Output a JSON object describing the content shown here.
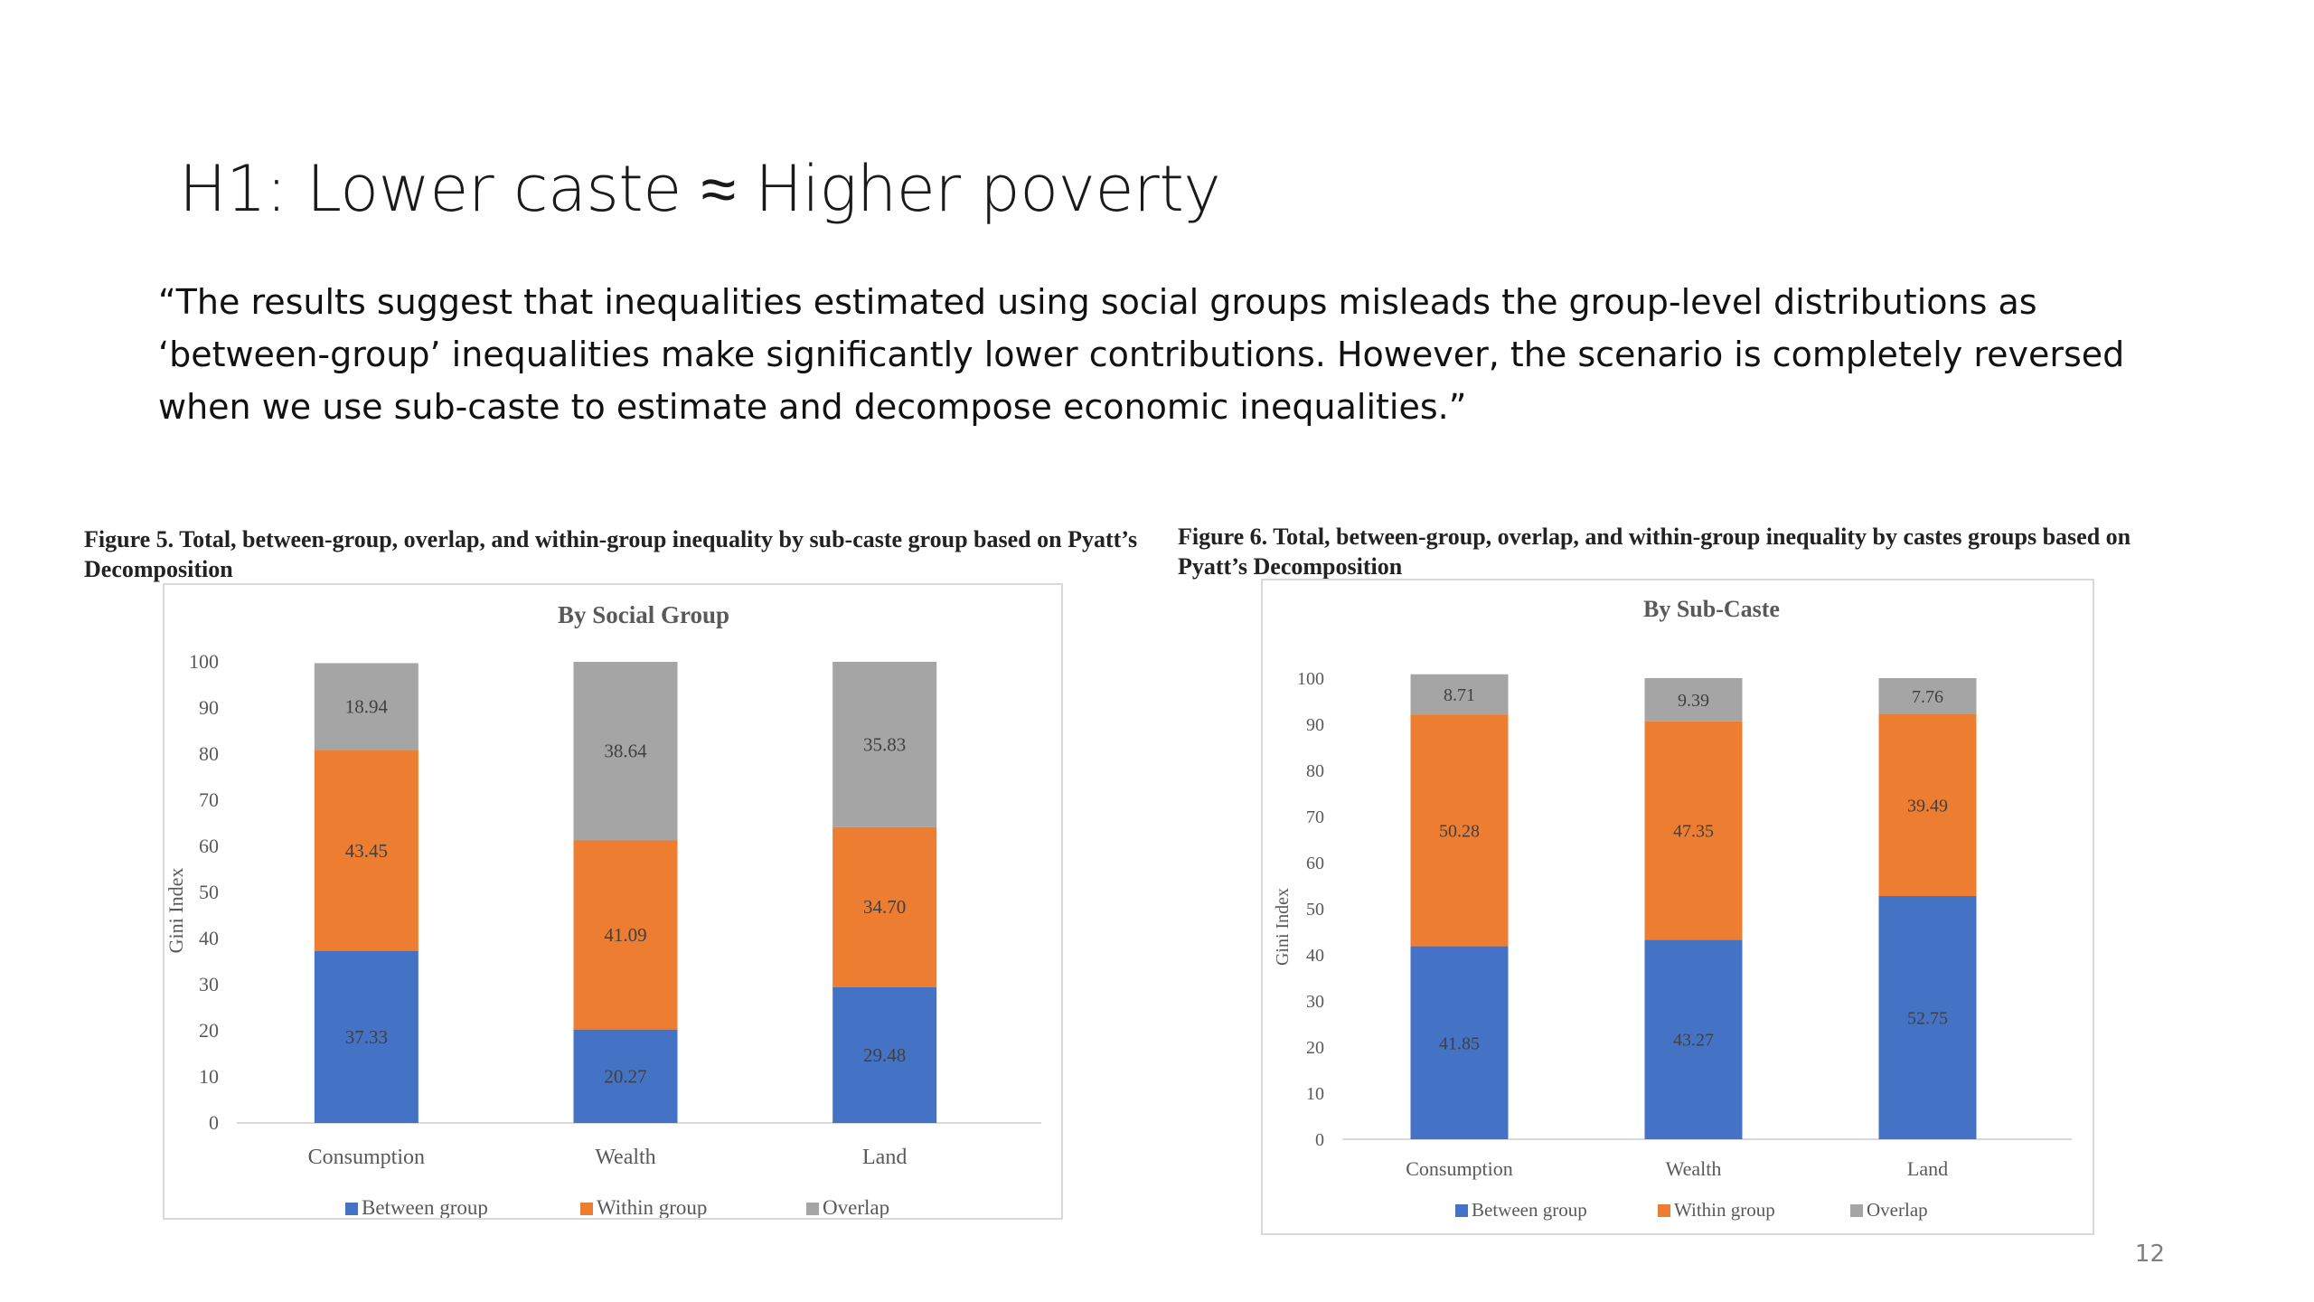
{
  "slide": {
    "title": "H1: Lower caste ≈ Higher poverty",
    "quote": "“The results suggest that inequalities estimated using social groups misleads the group-level distributions as ‘between-group’ inequalities make significantly lower contributions. However, the scenario is completely reversed when we use sub-caste to estimate and decompose economic inequalities.”",
    "page_number": "12"
  },
  "captions": {
    "fig5": "Figure 5.  Total, between-group, overlap, and within-group inequality by sub-caste group based on Pyatt’s Decomposition",
    "fig6": "Figure 6. Total, between-group, overlap, and within-group inequality by castes groups based on Pyatt’s Decomposition"
  },
  "colors": {
    "between": "#4472C4",
    "within": "#ED7D31",
    "overlap": "#A5A5A5"
  },
  "chart_data": [
    {
      "type": "bar",
      "stacked": true,
      "title": "By Social Group",
      "ylabel": "Gini Index",
      "xlabel": "",
      "ylim": [
        0,
        100
      ],
      "yticks": [
        0,
        10,
        20,
        30,
        40,
        50,
        60,
        70,
        80,
        90,
        100
      ],
      "categories": [
        "Consumption",
        "Wealth",
        "Land"
      ],
      "series": [
        {
          "name": "Between group",
          "values": [
            37.33,
            20.27,
            29.48
          ]
        },
        {
          "name": "Within group",
          "values": [
            43.45,
            41.09,
            34.7
          ]
        },
        {
          "name": "Overlap",
          "values": [
            18.94,
            38.64,
            35.83
          ]
        }
      ],
      "value_labels": [
        [
          "37.33",
          "20.27",
          "29.48"
        ],
        [
          "43.45",
          "41.09",
          "34.70"
        ],
        [
          "18.94",
          "38.64",
          "35.83"
        ]
      ],
      "legend_position": "bottom"
    },
    {
      "type": "bar",
      "stacked": true,
      "title": "By Sub-Caste",
      "ylabel": "Gini Index",
      "xlabel": "",
      "ylim": [
        0,
        100
      ],
      "yticks": [
        0,
        10,
        20,
        30,
        40,
        50,
        60,
        70,
        80,
        90,
        100
      ],
      "categories": [
        "Consumption",
        "Wealth",
        "Land"
      ],
      "series": [
        {
          "name": "Between group",
          "values": [
            41.85,
            43.27,
            52.75
          ]
        },
        {
          "name": "Within group",
          "values": [
            50.28,
            47.35,
            39.49
          ]
        },
        {
          "name": "Overlap",
          "values": [
            8.71,
            9.39,
            7.76
          ]
        }
      ],
      "value_labels": [
        [
          "41.85",
          "43.27",
          "52.75"
        ],
        [
          "50.28",
          "47.35",
          "39.49"
        ],
        [
          "8.71",
          "9.39",
          "7.76"
        ]
      ],
      "legend_position": "bottom"
    }
  ]
}
